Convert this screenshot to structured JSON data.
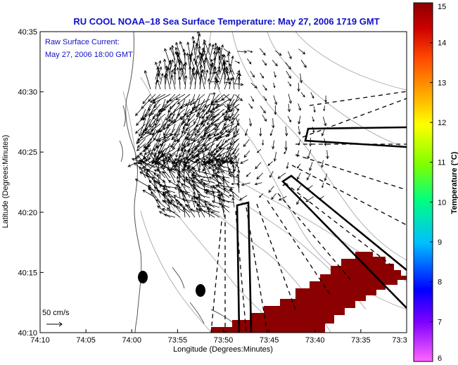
{
  "title": "RU COOL  NOAA–18  Sea Surface Temperature:  May 27, 2006 1719 GMT",
  "current_label": {
    "line1": "Raw Surface Current:",
    "line2": "May 27, 2006 18:00 GMT"
  },
  "scale_label": "50 cm/s",
  "axes": {
    "xlabel": "Longitude (Degrees:Minutes)",
    "ylabel": "Latitude (Degrees:Minutes)",
    "x_ticks": [
      "74:10",
      "74:05",
      "74:00",
      "73:55",
      "73:50",
      "73:45",
      "73:40",
      "73:35",
      "73:3"
    ],
    "y_ticks": [
      "40:10",
      "40:15",
      "40:20",
      "40:25",
      "40:30",
      "40:35"
    ],
    "x_range_minutes_west": [
      70,
      30
    ],
    "y_range_minutes_north": [
      10,
      35
    ]
  },
  "colorbar": {
    "label": "Temperature (°C)",
    "ticks": [
      "6",
      "7",
      "8",
      "9",
      "10",
      "11",
      "12",
      "13",
      "14",
      "15"
    ],
    "range": [
      6,
      15
    ],
    "colors": [
      "#ff66ff",
      "#7f00ff",
      "#0000ff",
      "#00bfff",
      "#00ff7f",
      "#7fff00",
      "#ffff00",
      "#ffa500",
      "#ff4500",
      "#cc0000",
      "#8b0000"
    ]
  },
  "sst_patch_color": "#8b0000",
  "icons": {
    "buoy_markers": "filled-ellipse",
    "current_vectors": "line-arrows"
  }
}
